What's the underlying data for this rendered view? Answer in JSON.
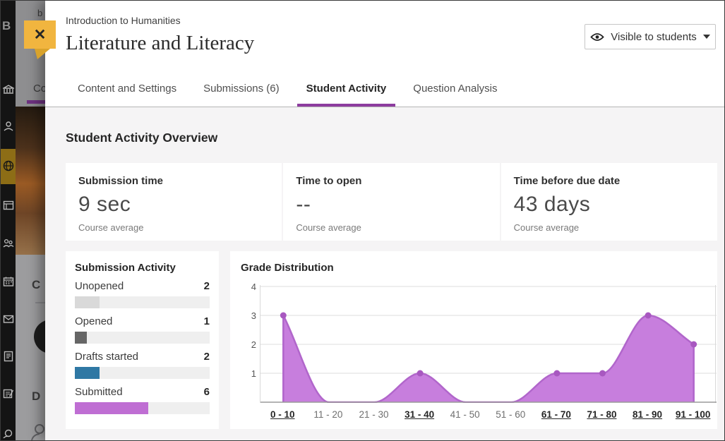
{
  "sidebar": {
    "icons": [
      "logo-b",
      "institution-icon",
      "profile-icon",
      "globe-icon",
      "pages-icon",
      "groups-icon",
      "calendar-icon",
      "messages-icon",
      "document-icon",
      "grades-icon",
      "person-icon"
    ],
    "active_icon": "globe-icon"
  },
  "backdrop": {
    "fragments": {
      "top_text": "b",
      "tab_text": "Co",
      "heading_c": "C",
      "heading_d": "D"
    }
  },
  "header": {
    "breadcrumb": "Introduction to Humanities",
    "title": "Literature and Literacy",
    "visibility_button": {
      "label": "Visible to students"
    },
    "close_glyph": "✕"
  },
  "tabs": [
    {
      "label": "Content and Settings",
      "active": false
    },
    {
      "label": "Submissions (6)",
      "active": false
    },
    {
      "label": "Student Activity",
      "active": true
    },
    {
      "label": "Question Analysis",
      "active": false
    }
  ],
  "overview": {
    "heading": "Student Activity Overview",
    "stats": [
      {
        "label": "Submission time",
        "value": "9 sec",
        "caption": "Course average"
      },
      {
        "label": "Time to open",
        "value": "--",
        "caption": "Course average"
      },
      {
        "label": "Time before due date",
        "value": "43 days",
        "caption": "Course average"
      }
    ]
  },
  "submission_activity": {
    "title": "Submission Activity",
    "bar_max": 11,
    "rows": [
      {
        "label": "Unopened",
        "count": 2,
        "color": "#d9d9d9"
      },
      {
        "label": "Opened",
        "count": 1,
        "color": "#666666"
      },
      {
        "label": "Drafts started",
        "count": 2,
        "color": "#2f78a4"
      },
      {
        "label": "Submitted",
        "count": 6,
        "color": "#bf6ed3"
      }
    ]
  },
  "chart_data": {
    "type": "area",
    "title": "Grade Distribution",
    "categories": [
      "0 - 10",
      "11 - 20",
      "21 - 30",
      "31 - 40",
      "41 - 50",
      "51 - 60",
      "61 - 70",
      "71 - 80",
      "81 - 90",
      "91 - 100"
    ],
    "values": [
      3,
      0,
      0,
      1,
      0,
      0,
      1,
      1,
      3,
      2
    ],
    "xlabel": "",
    "ylabel": "",
    "ylim": [
      0,
      4
    ],
    "yticks": [
      1,
      2,
      3,
      4
    ],
    "grid": true,
    "legend": false,
    "colors": {
      "fill": "#c77edd",
      "line": "#b166cb",
      "marker": "#a858c0"
    }
  },
  "colors": {
    "accent_purple": "#8d3c9f",
    "close_gold": "#f1b53f",
    "sidebar_active_gold": "#8d6d16"
  }
}
